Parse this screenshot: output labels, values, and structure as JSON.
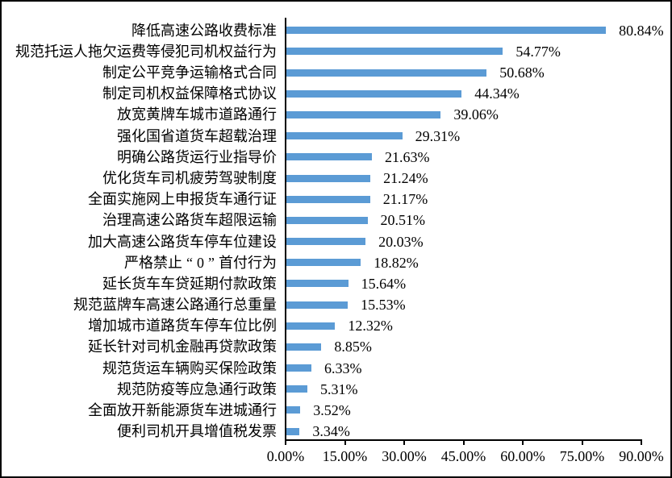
{
  "chart_data": {
    "type": "bar",
    "orientation": "horizontal",
    "title": "",
    "xlabel": "",
    "ylabel": "",
    "xlim": [
      0,
      90
    ],
    "grid": false,
    "categories": [
      "降低高速公路收费标准",
      "规范托运人拖欠运费等侵犯司机权益行为",
      "制定公平竞争运输格式合同",
      "制定司机权益保障格式协议",
      "放宽黄牌车城市道路通行",
      "强化国省道货车超载治理",
      "明确公路货运行业指导价",
      "优化货车司机疲劳驾驶制度",
      "全面实施网上申报货车通行证",
      "治理高速公路货车超限运输",
      "加大高速公路货车停车位建设",
      "严格禁止“0”首付行为",
      "延长货车车贷延期付款政策",
      "规范蓝牌车高速公路通行总重量",
      "增加城市道路货车停车位比例",
      "延长针对司机金融再贷款政策",
      "规范货运车辆购买保险政策",
      "规范防疫等应急通行政策",
      "全面放开新能源货车进城通行",
      "便利司机开具增值税发票"
    ],
    "values": [
      80.84,
      54.77,
      50.68,
      44.34,
      39.06,
      29.31,
      21.63,
      21.24,
      21.17,
      20.51,
      20.03,
      18.82,
      15.64,
      15.53,
      12.32,
      8.85,
      6.33,
      5.31,
      3.52,
      3.34
    ],
    "value_labels": [
      "80.84%",
      "54.77%",
      "50.68%",
      "44.34%",
      "39.06%",
      "29.31%",
      "21.63%",
      "21.24%",
      "21.17%",
      "20.51%",
      "20.03%",
      "18.82%",
      "15.64%",
      "15.53%",
      "12.32%",
      "8.85%",
      "6.33%",
      "5.31%",
      "3.52%",
      "3.34%"
    ],
    "x_tick_labels": [
      "0.00%",
      "15.00%",
      "30.00%",
      "45.00%",
      "60.00%",
      "75.00%",
      "90.00%"
    ],
    "bar_color": "#5B9BD5",
    "axis_color": "#000000",
    "text_color": "#000000"
  }
}
